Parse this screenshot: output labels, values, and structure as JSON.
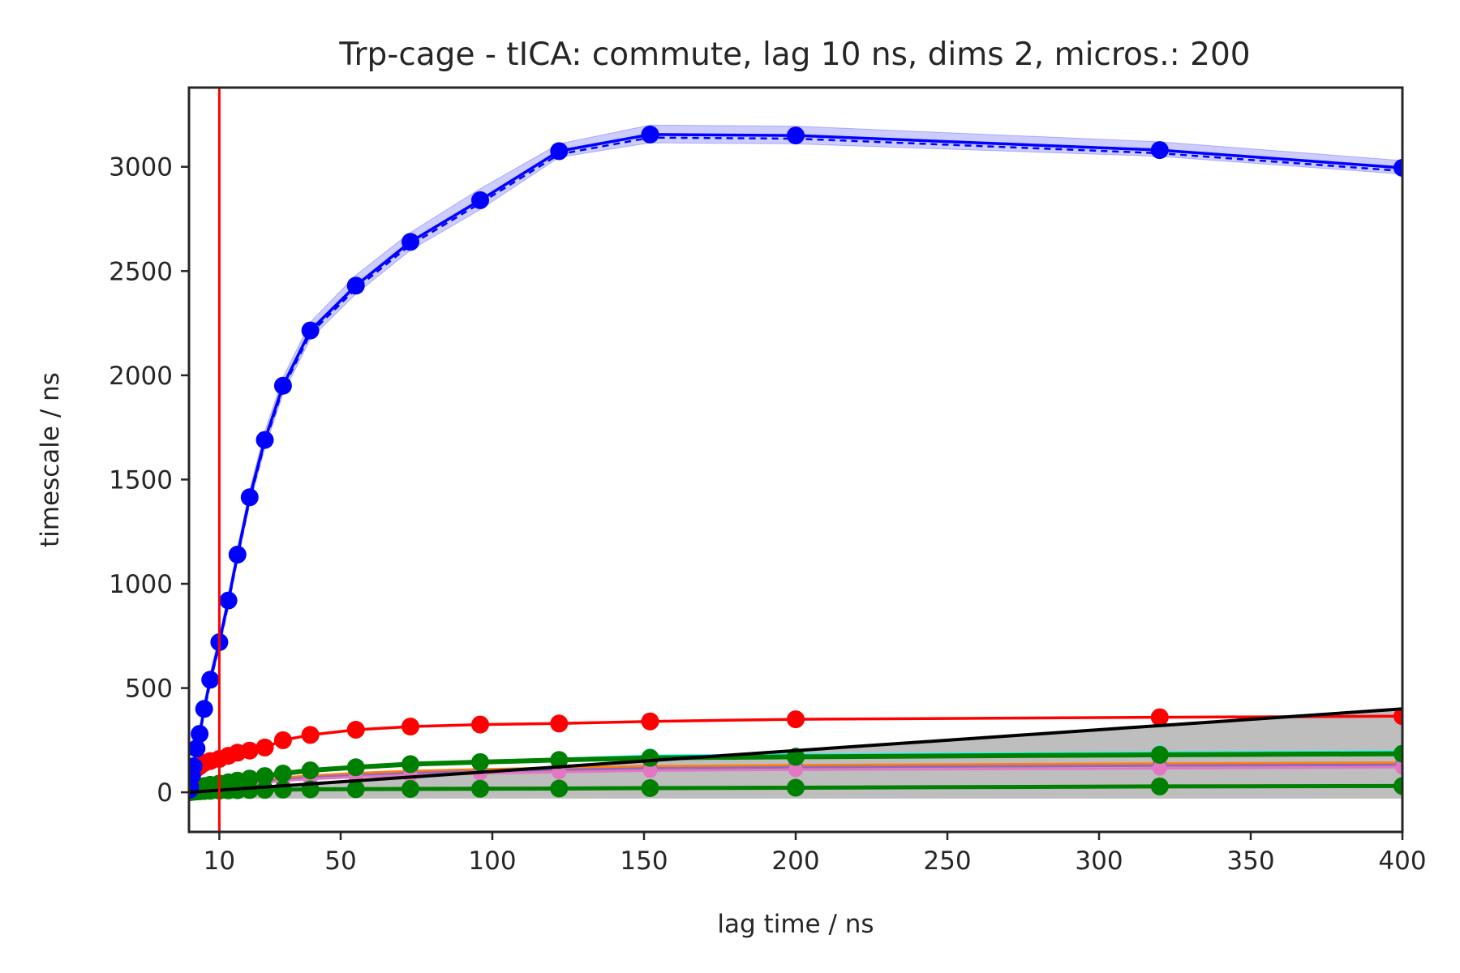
{
  "chart_data": {
    "type": "line",
    "title": "Trp-cage - tICA: commute, lag 10 ns, dims 2, micros.: 200",
    "xlabel": "lag time / ns",
    "ylabel": "timescale / ns",
    "xlim": [
      0,
      400
    ],
    "ylim": [
      -190,
      3380
    ],
    "xticks": [
      10,
      50,
      100,
      150,
      200,
      250,
      300,
      350,
      400
    ],
    "yticks": [
      0,
      500,
      1000,
      1500,
      2000,
      2500,
      3000
    ],
    "grid": false,
    "legend": "none",
    "chosen_lag": 10,
    "chosen_lag_color": "#ff0000",
    "x": [
      0.2,
      0.4,
      1,
      1.5,
      2.5,
      3.5,
      5,
      7,
      10,
      13,
      16,
      20,
      25,
      31,
      40,
      55,
      73,
      96,
      122,
      152,
      200,
      320,
      400
    ],
    "series": [
      {
        "color": "#0000ff",
        "values": [
          12,
          25,
          80,
          125,
          210,
          280,
          400,
          540,
          720,
          920,
          1140,
          1415,
          1690,
          1950,
          2215,
          2430,
          2640,
          2840,
          3075,
          3155,
          3150,
          3080,
          2995
        ],
        "band_lower": [
          5,
          15,
          60,
          100,
          180,
          250,
          370,
          510,
          690,
          890,
          1110,
          1380,
          1650,
          1910,
          2175,
          2390,
          2600,
          2795,
          3045,
          3115,
          3110,
          3050,
          2965
        ],
        "band_upper": [
          20,
          35,
          100,
          150,
          240,
          310,
          430,
          575,
          755,
          955,
          1175,
          1450,
          1730,
          1990,
          2255,
          2480,
          2685,
          2895,
          3110,
          3200,
          3195,
          3120,
          3030
        ],
        "band_color": "#0000ff"
      },
      {
        "color": "#ff0000",
        "values": [
          40,
          55,
          80,
          100,
          115,
          125,
          140,
          150,
          160,
          175,
          190,
          200,
          215,
          250,
          275,
          300,
          315,
          325,
          330,
          340,
          350,
          360,
          365
        ]
      },
      {
        "color": "#00ffff",
        "values": [
          2,
          4,
          8,
          12,
          16,
          20,
          25,
          30,
          35,
          40,
          48,
          58,
          70,
          85,
          100,
          115,
          130,
          145,
          160,
          175,
          180,
          190,
          195
        ]
      },
      {
        "color": "#ff7f0e",
        "values": [
          1,
          3,
          6,
          9,
          13,
          17,
          21,
          25,
          29,
          33,
          40,
          48,
          58,
          70,
          80,
          92,
          102,
          110,
          118,
          125,
          130,
          138,
          142
        ]
      },
      {
        "color": "#9467bd",
        "values": [
          1,
          2,
          5,
          8,
          11,
          14,
          18,
          22,
          26,
          30,
          36,
          43,
          52,
          62,
          72,
          82,
          92,
          100,
          108,
          115,
          120,
          128,
          132
        ]
      },
      {
        "color": "#e377c2",
        "values": [
          1,
          2,
          4,
          7,
          10,
          12,
          15,
          19,
          23,
          27,
          32,
          38,
          46,
          55,
          64,
          73,
          82,
          90,
          97,
          104,
          108,
          115,
          120
        ]
      },
      {
        "color": "#008000",
        "values": [
          3,
          5,
          10,
          15,
          20,
          25,
          30,
          36,
          42,
          48,
          56,
          66,
          78,
          90,
          105,
          120,
          135,
          145,
          155,
          165,
          170,
          180,
          185
        ]
      },
      {
        "color": "#008000",
        "values": [
          0.5,
          1,
          2,
          3,
          4,
          5,
          6,
          7,
          8,
          9,
          10,
          11,
          12,
          13,
          14,
          15,
          16,
          17,
          18,
          20,
          22,
          28,
          30
        ]
      }
    ],
    "gray_band": {
      "color": "#bebebe",
      "x": [
        0,
        400
      ],
      "lower": [
        -30,
        -30
      ],
      "upper": [
        0,
        400
      ]
    },
    "reference_line": {
      "color": "#000000",
      "x": [
        0,
        400
      ],
      "values": [
        0,
        400
      ]
    }
  }
}
